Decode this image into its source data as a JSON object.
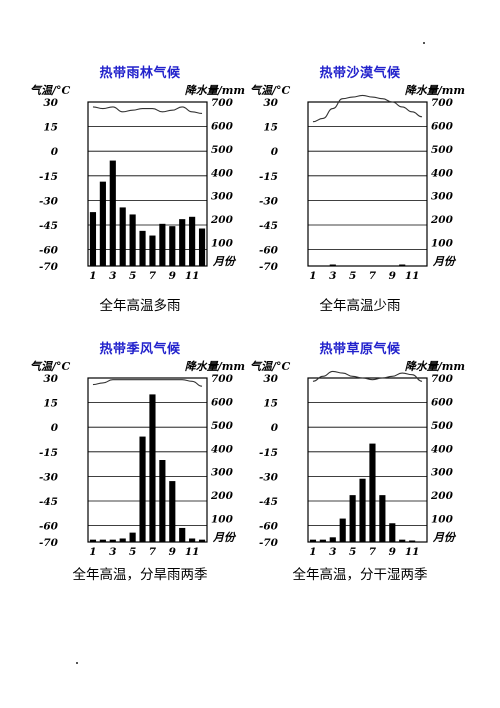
{
  "colors": {
    "title": "#2222cc",
    "bar": "#000000",
    "line": "#333333",
    "grid": "#000000"
  },
  "panels": [
    {
      "title": "热带雨林气候",
      "caption": "全年高温多雨",
      "ylabel_left": "气温/°C",
      "ylabel_right": "降水量/mm",
      "xlabel": "月份",
      "left_ticks": [
        "30",
        "15",
        "0",
        "-15",
        "-30",
        "-45",
        "-60",
        "-70"
      ],
      "right_ticks": [
        "700",
        "600",
        "500",
        "400",
        "300",
        "200",
        "100"
      ],
      "month_ticks": [
        "1",
        "3",
        "5",
        "7",
        "9",
        "11"
      ]
    },
    {
      "title": "热带沙漠气候",
      "caption": "全年高温少雨",
      "ylabel_left": "气温/°C",
      "ylabel_right": "降水量/mm",
      "xlabel": "月份",
      "left_ticks": [
        "30",
        "15",
        "0",
        "-15",
        "-30",
        "-45",
        "-60",
        "-70"
      ],
      "right_ticks": [
        "700",
        "600",
        "500",
        "400",
        "300",
        "200",
        "100"
      ],
      "month_ticks": [
        "1",
        "3",
        "5",
        "7",
        "9",
        "11"
      ]
    },
    {
      "title": "热带季风气候",
      "caption": "全年高温，分旱雨两季",
      "ylabel_left": "气温/°C",
      "ylabel_right": "降水量/mm",
      "xlabel": "月份",
      "left_ticks": [
        "30",
        "15",
        "0",
        "-15",
        "-30",
        "-45",
        "-60",
        "-70"
      ],
      "right_ticks": [
        "700",
        "600",
        "500",
        "400",
        "300",
        "200",
        "100"
      ],
      "month_ticks": [
        "1",
        "3",
        "5",
        "7",
        "9",
        "11"
      ]
    },
    {
      "title": "热带草原气候",
      "caption": "全年高温，分干湿两季",
      "ylabel_left": "气温/°C",
      "ylabel_right": "降水量/mm",
      "xlabel": "月份",
      "left_ticks": [
        "30",
        "15",
        "0",
        "-15",
        "-30",
        "-45",
        "-60",
        "-70"
      ],
      "right_ticks": [
        "700",
        "600",
        "500",
        "400",
        "300",
        "200",
        "100"
      ],
      "month_ticks": [
        "1",
        "3",
        "5",
        "7",
        "9",
        "11"
      ]
    }
  ],
  "chart_data": [
    {
      "type": "bar",
      "title": "热带雨林气候",
      "categories": [
        "1",
        "2",
        "3",
        "4",
        "5",
        "6",
        "7",
        "8",
        "9",
        "10",
        "11",
        "12"
      ],
      "ylim_temperature": [
        -70,
        30
      ],
      "ylim_precipitation": [
        0,
        700
      ],
      "series": [
        {
          "name": "降水量",
          "axis": "right",
          "type": "bar",
          "values": [
            230,
            360,
            450,
            250,
            220,
            150,
            130,
            180,
            170,
            200,
            210,
            160
          ]
        },
        {
          "name": "气温",
          "axis": "left",
          "type": "line",
          "values": [
            27,
            26,
            27,
            24,
            25,
            26,
            26,
            24,
            25,
            27,
            24,
            23
          ]
        }
      ]
    },
    {
      "type": "bar",
      "title": "热带沙漠气候",
      "categories": [
        "1",
        "2",
        "3",
        "4",
        "5",
        "6",
        "7",
        "8",
        "9",
        "10",
        "11",
        "12"
      ],
      "ylim_temperature": [
        -70,
        30
      ],
      "ylim_precipitation": [
        0,
        700
      ],
      "series": [
        {
          "name": "降水量",
          "axis": "right",
          "type": "bar",
          "values": [
            0,
            0,
            3,
            0,
            0,
            0,
            0,
            0,
            0,
            2,
            0,
            0
          ]
        },
        {
          "name": "气温",
          "axis": "left",
          "type": "line",
          "values": [
            18,
            20,
            26,
            32,
            33,
            34,
            33,
            32,
            30,
            27,
            24,
            21
          ]
        }
      ]
    },
    {
      "type": "bar",
      "title": "热带季风气候",
      "categories": [
        "1",
        "2",
        "3",
        "4",
        "5",
        "6",
        "7",
        "8",
        "9",
        "10",
        "11",
        "12"
      ],
      "ylim_temperature": [
        -70,
        30
      ],
      "ylim_precipitation": [
        0,
        700
      ],
      "series": [
        {
          "name": "降水量",
          "axis": "right",
          "type": "bar",
          "values": [
            10,
            10,
            10,
            15,
            40,
            450,
            630,
            350,
            260,
            60,
            15,
            10
          ]
        },
        {
          "name": "气温",
          "axis": "left",
          "type": "line",
          "values": [
            26,
            27,
            29,
            29,
            29,
            29,
            29,
            29,
            29,
            29,
            28,
            25
          ]
        }
      ]
    },
    {
      "type": "bar",
      "title": "热带草原气候",
      "categories": [
        "1",
        "2",
        "3",
        "4",
        "5",
        "6",
        "7",
        "8",
        "9",
        "10",
        "11",
        "12"
      ],
      "ylim_temperature": [
        -70,
        30
      ],
      "ylim_precipitation": [
        0,
        700
      ],
      "series": [
        {
          "name": "降水量",
          "axis": "right",
          "type": "bar",
          "values": [
            10,
            10,
            20,
            100,
            200,
            270,
            420,
            200,
            80,
            10,
            5,
            0
          ]
        },
        {
          "name": "气温",
          "axis": "left",
          "type": "line",
          "values": [
            28,
            31,
            34,
            33,
            31,
            30,
            29,
            30,
            31,
            33,
            32,
            28
          ]
        }
      ]
    }
  ]
}
